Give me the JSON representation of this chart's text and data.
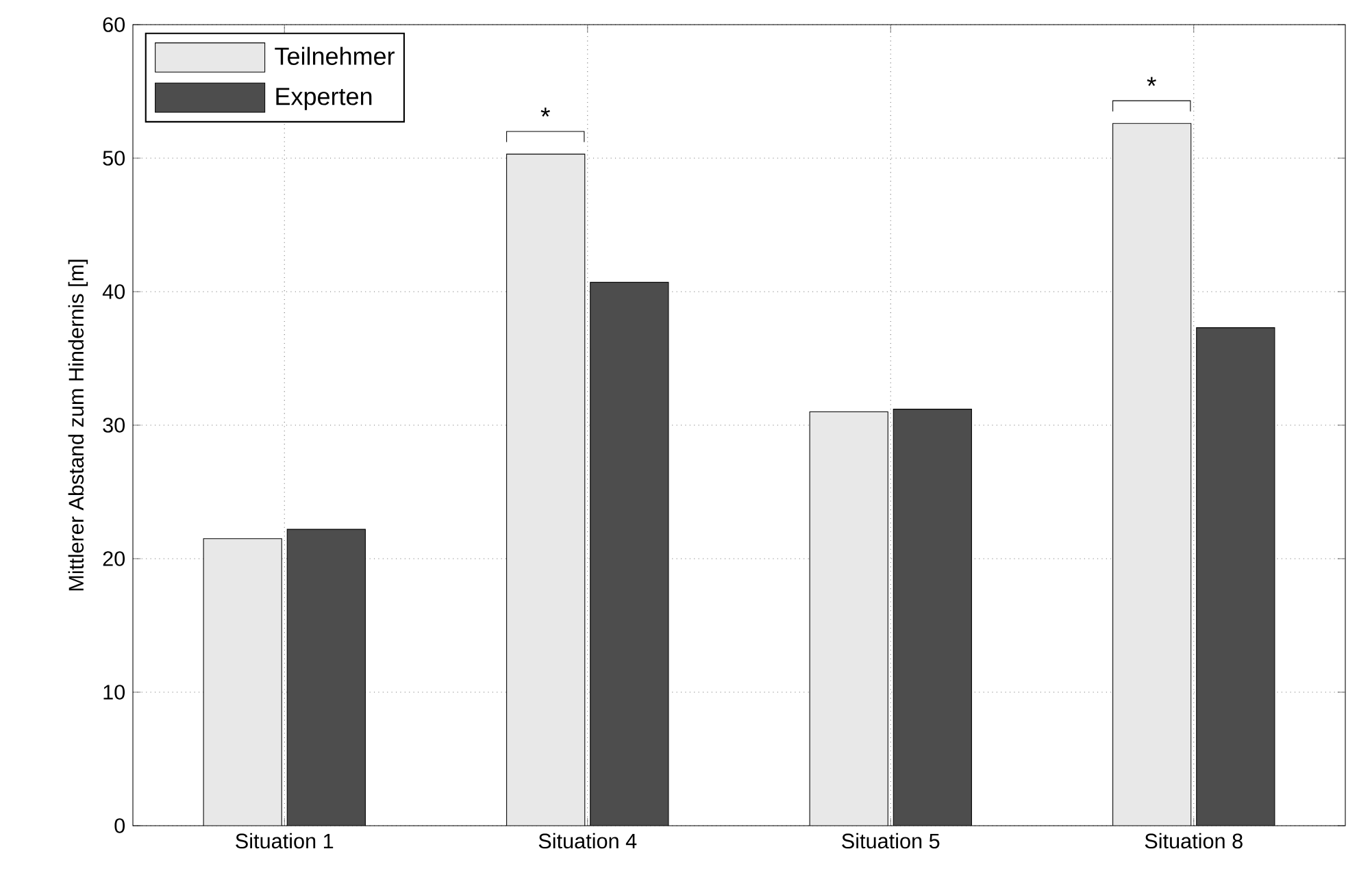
{
  "chart_data": {
    "type": "bar",
    "ylabel": "Mittlerer Abstand zum Hindernis [m]",
    "categories": [
      "Situation 1",
      "Situation 4",
      "Situation 5",
      "Situation 8"
    ],
    "series": [
      {
        "name": "Teilnehmer",
        "color": "#e8e8e8",
        "values": [
          21.5,
          50.3,
          31.0,
          52.6
        ]
      },
      {
        "name": "Experten",
        "color": "#4d4d4d",
        "values": [
          22.2,
          40.7,
          31.2,
          37.3
        ]
      }
    ],
    "ylim": [
      0,
      60
    ],
    "yticks": [
      0,
      10,
      20,
      30,
      40,
      50,
      60
    ],
    "grid": true,
    "legend": "top left",
    "annotations": [
      {
        "text": "*",
        "x": "Situation 4",
        "y": 50.3
      },
      {
        "text": "*",
        "x": "Situation 8",
        "y": 52.6
      }
    ]
  }
}
